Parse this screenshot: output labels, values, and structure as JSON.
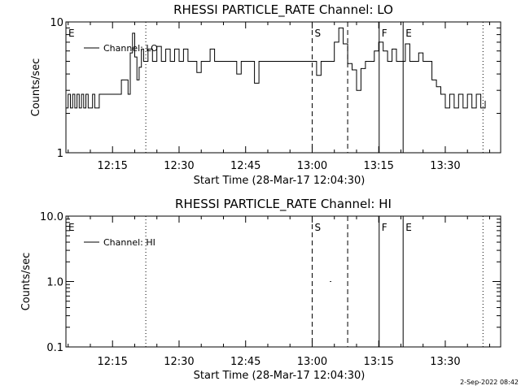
{
  "footer_date": "2-Sep-2022 08:42",
  "chart_data": [
    {
      "type": "line",
      "title": "RHESSI PARTICLE_RATE Channel: LO",
      "xlabel": "Start Time (28-Mar-17 12:04:30)",
      "ylabel": "Counts/sec",
      "y_scale": "log",
      "ylim": [
        1,
        10
      ],
      "y_ticks": [
        {
          "value": 1,
          "label": "1"
        },
        {
          "value": 10,
          "label": "10"
        }
      ],
      "x_range_min": [
        4.5,
        83
      ],
      "x_ticks": [
        {
          "min": 15,
          "label": "12:15"
        },
        {
          "min": 30,
          "label": "12:30"
        },
        {
          "min": 45,
          "label": "12:45"
        },
        {
          "min": 60,
          "label": "13:00"
        },
        {
          "min": 75,
          "label": "13:15"
        },
        {
          "min": 90,
          "label": "13:30"
        }
      ],
      "legend": {
        "label": "Channel: LO",
        "position": "top-left"
      },
      "markers": [
        {
          "min": 4.5,
          "style": "none",
          "label": "E"
        },
        {
          "min": 22.5,
          "style": "dotted",
          "label": ""
        },
        {
          "min": 60,
          "style": "dashed",
          "label": "S"
        },
        {
          "min": 68,
          "style": "dashed",
          "label": ""
        },
        {
          "min": 75.1,
          "style": "solid",
          "label": "F"
        },
        {
          "min": 80.5,
          "style": "solid",
          "label": "E"
        },
        {
          "min": 98.5,
          "style": "dotted",
          "label": ""
        }
      ],
      "series": [
        {
          "name": "Channel: LO",
          "x": [
            4.5,
            5,
            5.5,
            6,
            6.5,
            7,
            7.5,
            8,
            8.5,
            9,
            9.5,
            10,
            10.5,
            11,
            11.5,
            12,
            13,
            14,
            15,
            16,
            17,
            18,
            18.5,
            19,
            19.5,
            20,
            20.5,
            21,
            21.5,
            22,
            23,
            24,
            25,
            26,
            27,
            28,
            29,
            30,
            31,
            32,
            33,
            34,
            35,
            36,
            37,
            38,
            39,
            40,
            41,
            42,
            43,
            44,
            45,
            46,
            47,
            48,
            49,
            50,
            51,
            52,
            53,
            54,
            55,
            56,
            57,
            58,
            59,
            60,
            61,
            62,
            63,
            64,
            65,
            66,
            67,
            68,
            69,
            70,
            71,
            72,
            73,
            74,
            75,
            76,
            77,
            78,
            79,
            80,
            81,
            82,
            83,
            84,
            85,
            86,
            87,
            88,
            89,
            90,
            91,
            92,
            93,
            94,
            95,
            96,
            97,
            98,
            99
          ],
          "y": [
            2.2,
            2.8,
            2.2,
            2.8,
            2.2,
            2.8,
            2.2,
            2.8,
            2.2,
            2.8,
            2.2,
            2.2,
            2.8,
            2.2,
            2.2,
            2.8,
            2.8,
            2.8,
            2.8,
            2.8,
            3.6,
            3.6,
            2.8,
            5.8,
            8.2,
            5.4,
            3.6,
            4.5,
            6.2,
            5.0,
            6.2,
            5.0,
            6.5,
            5.0,
            6.2,
            5.0,
            6.2,
            5.0,
            6.2,
            5.0,
            5.0,
            4.1,
            5.0,
            5.0,
            6.2,
            5.0,
            5.0,
            5.0,
            5.0,
            5.0,
            4.0,
            5.0,
            5.0,
            5.0,
            3.4,
            5.0,
            5.0,
            5.0,
            5.0,
            5.0,
            5.0,
            5.0,
            5.0,
            5.0,
            5.0,
            5.0,
            5.0,
            5.0,
            3.9,
            5.0,
            5.0,
            5.0,
            7.0,
            9.0,
            6.8,
            4.8,
            4.3,
            3.0,
            4.4,
            5.0,
            5.0,
            6.0,
            7.0,
            6.0,
            5.0,
            6.2,
            5.0,
            5.0,
            6.8,
            5.0,
            5.0,
            5.8,
            5.0,
            5.0,
            3.6,
            3.2,
            2.8,
            2.2,
            2.8,
            2.2,
            2.8,
            2.2,
            2.8,
            2.2,
            2.8,
            2.2,
            2.5
          ]
        }
      ]
    },
    {
      "type": "line",
      "title": "RHESSI PARTICLE_RATE Channel: HI",
      "xlabel": "Start Time (28-Mar-17 12:04:30)",
      "ylabel": "Counts/sec",
      "y_scale": "log",
      "ylim": [
        0.1,
        10
      ],
      "y_ticks": [
        {
          "value": 0.1,
          "label": "0.1"
        },
        {
          "value": 1,
          "label": "1.0"
        },
        {
          "value": 10,
          "label": "10.0"
        }
      ],
      "x_range_min": [
        4.5,
        83
      ],
      "x_ticks": [
        {
          "min": 15,
          "label": "12:15"
        },
        {
          "min": 30,
          "label": "12:30"
        },
        {
          "min": 45,
          "label": "12:45"
        },
        {
          "min": 60,
          "label": "13:00"
        },
        {
          "min": 75,
          "label": "13:15"
        },
        {
          "min": 90,
          "label": "13:30"
        }
      ],
      "legend": {
        "label": "Channel: HI",
        "position": "top-left"
      },
      "markers": [
        {
          "min": 4.5,
          "style": "none",
          "label": "E"
        },
        {
          "min": 22.5,
          "style": "dotted",
          "label": ""
        },
        {
          "min": 60,
          "style": "dashed",
          "label": "S"
        },
        {
          "min": 68,
          "style": "dashed",
          "label": ""
        },
        {
          "min": 75.1,
          "style": "solid",
          "label": "F"
        },
        {
          "min": 80.5,
          "style": "solid",
          "label": "E"
        },
        {
          "min": 98.5,
          "style": "dotted",
          "label": ""
        }
      ],
      "series": [
        {
          "name": "Channel: HI",
          "x": [
            64,
            64.3
          ],
          "y": [
            1.0,
            1.0
          ]
        }
      ]
    }
  ]
}
